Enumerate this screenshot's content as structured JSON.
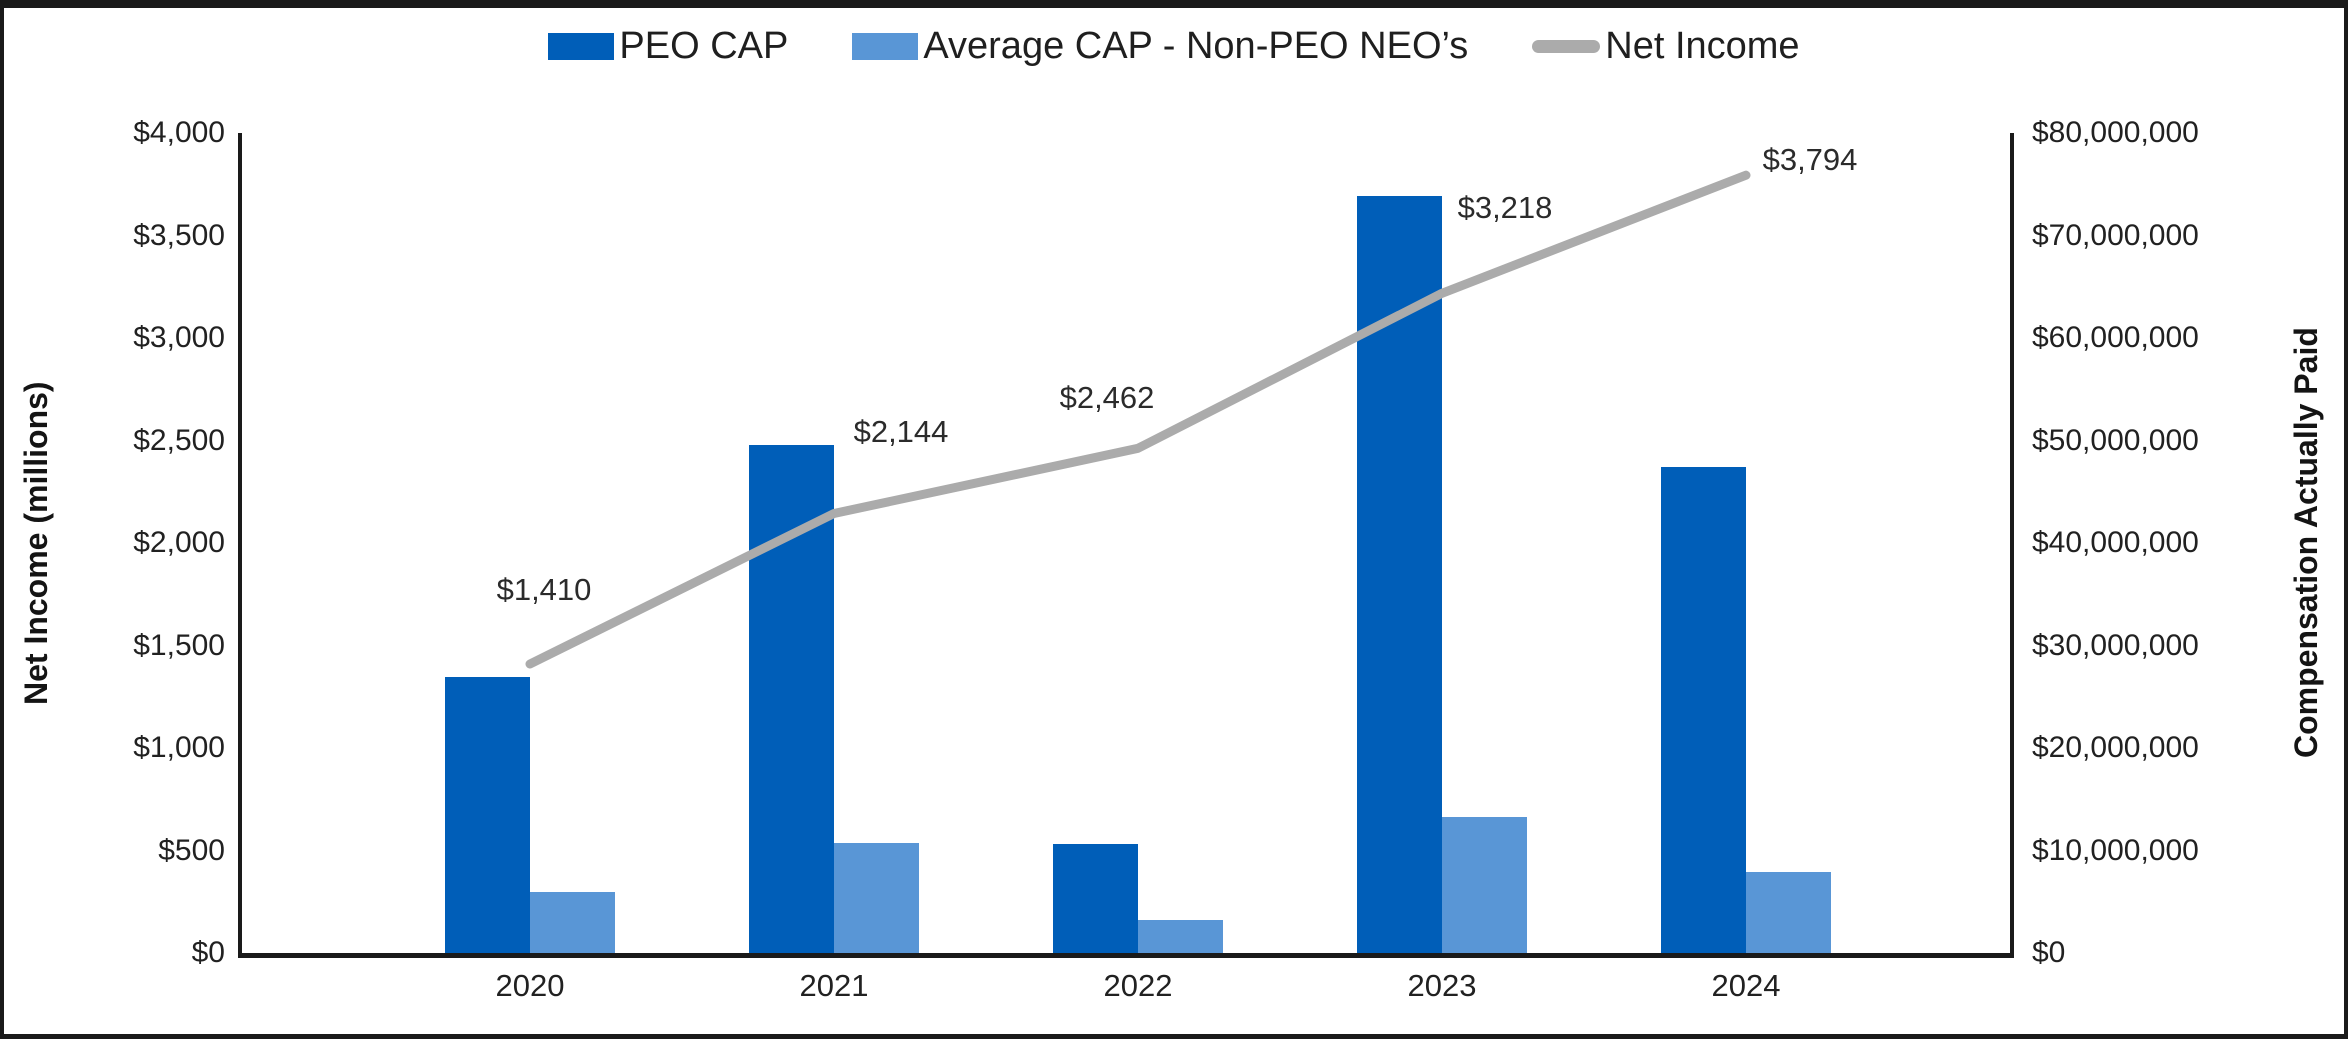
{
  "legend": {
    "items": [
      {
        "label": "PEO CAP",
        "color": "#005EB8",
        "type": "bar"
      },
      {
        "label": "Average CAP - Non-PEO NEO’s",
        "color": "#5996D6",
        "type": "bar"
      },
      {
        "label": "Net Income",
        "color": "#ABABAB",
        "type": "line"
      }
    ]
  },
  "chart_data": {
    "type": "bar+line combo",
    "categories": [
      "2020",
      "2021",
      "2022",
      "2023",
      "2024"
    ],
    "series": [
      {
        "name": "PEO CAP",
        "type": "bar",
        "axis": "right",
        "color": "#005EB8",
        "values": [
          26900000,
          49600000,
          10600000,
          73900000,
          47400000
        ]
      },
      {
        "name": "Average CAP - Non-PEO NEO’s",
        "type": "bar",
        "axis": "right",
        "color": "#5996D6",
        "values": [
          6000000,
          10700000,
          3200000,
          13300000,
          7900000
        ]
      },
      {
        "name": "Net Income",
        "type": "line",
        "axis": "left",
        "color": "#ABABAB",
        "values": [
          1410,
          2144,
          2462,
          3218,
          3794
        ],
        "labels": [
          "$1,410",
          "$2,144",
          "$2,462",
          "$3,218",
          "$3,794"
        ]
      }
    ],
    "left_axis": {
      "title": "Net Income (millions)",
      "min": 0,
      "max": 4000,
      "step": 500,
      "tick_labels": [
        "$0",
        "$500",
        "$1,000",
        "$1,500",
        "$2,000",
        "$2,500",
        "$3,000",
        "$3,500",
        "$4,000"
      ]
    },
    "right_axis": {
      "title": "Compensation Actually Paid",
      "min": 0,
      "max": 80000000,
      "step": 10000000,
      "tick_labels": [
        "$0",
        "$10,000,000",
        "$20,000,000",
        "$30,000,000",
        "$40,000,000",
        "$50,000,000",
        "$60,000,000",
        "$70,000,000",
        "$80,000,000"
      ]
    },
    "grid": false,
    "legend_position": "top"
  }
}
